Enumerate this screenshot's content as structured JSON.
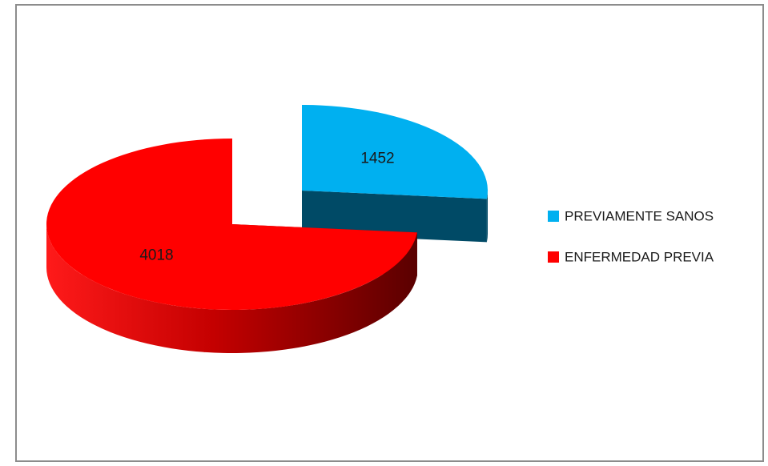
{
  "chart_data": {
    "type": "pie",
    "title": "",
    "style": "3d-exploded",
    "legend_position": "right",
    "total": 5470,
    "categories": [
      "PREVIAMENTE SANOS",
      "ENFERMEDAD PREVIA"
    ],
    "values": [
      1452,
      4018
    ],
    "data_labels": [
      "1452",
      "4018"
    ],
    "colors": {
      "PREVIAMENTE SANOS": {
        "top": "#00b0f0",
        "side": "#004a66"
      },
      "ENFERMEDAD PREVIA": {
        "top": "#ff0000",
        "side": "#8b0000"
      }
    }
  }
}
